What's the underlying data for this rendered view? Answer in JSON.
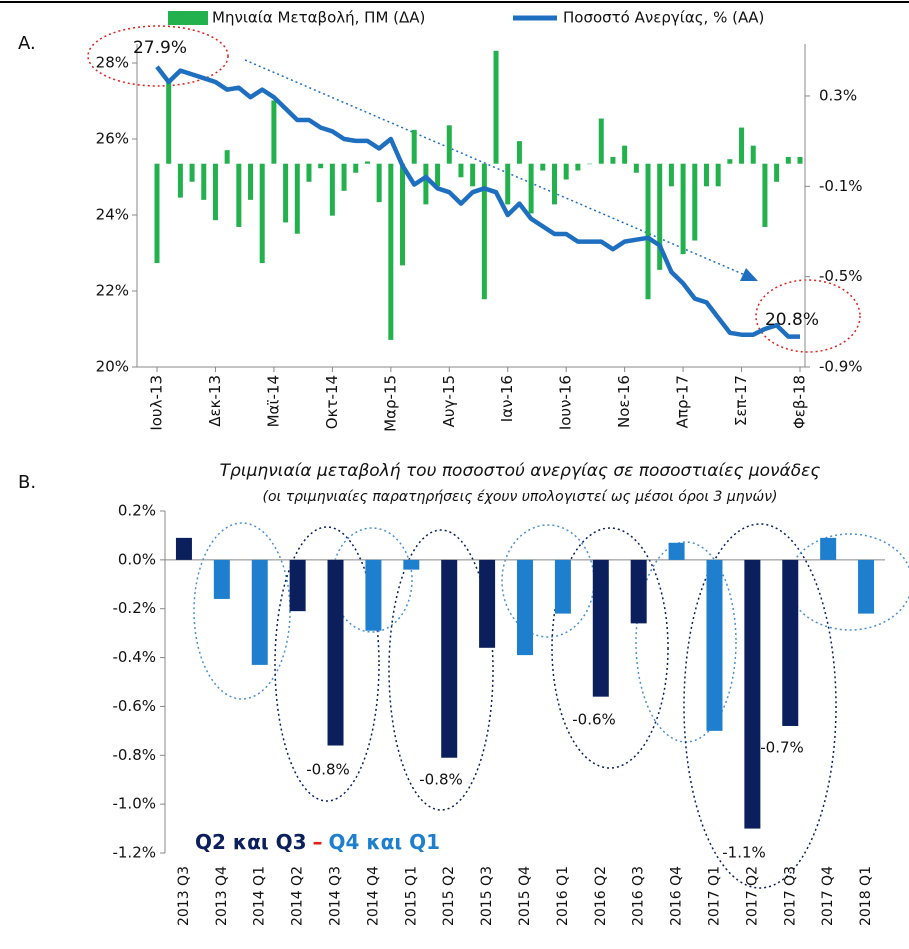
{
  "chart_data": [
    {
      "type": "combo",
      "label": "A.",
      "categories": [
        "Ιουλ-13",
        null,
        null,
        null,
        null,
        "Δεκ-13",
        null,
        null,
        null,
        null,
        "Μαϊ-14",
        null,
        null,
        null,
        null,
        "Οκτ-14",
        null,
        null,
        null,
        null,
        "Μαρ-15",
        null,
        null,
        null,
        null,
        "Αυγ-15",
        null,
        null,
        null,
        null,
        "Ιαν-16",
        null,
        null,
        null,
        null,
        "Ιουν-16",
        null,
        null,
        null,
        null,
        "Νοε-16",
        null,
        null,
        null,
        null,
        "Απρ-17",
        null,
        null,
        null,
        null,
        "Σεπ-17",
        null,
        null,
        null,
        null,
        "Φεβ-18"
      ],
      "series": [
        {
          "name": "Μηνιαία Μεταβολή, ΠΜ (ΔΑ)",
          "color": "#22b14c",
          "axis": "y2",
          "values": [
            -0.44,
            0.36,
            -0.15,
            -0.08,
            -0.16,
            -0.25,
            0.06,
            -0.28,
            -0.16,
            -0.44,
            0.28,
            -0.26,
            -0.31,
            -0.08,
            -0.02,
            -0.23,
            -0.12,
            -0.04,
            0.01,
            -0.17,
            -0.78,
            -0.45,
            0.15,
            -0.18,
            -0.1,
            0.17,
            -0.06,
            -0.1,
            -0.6,
            0.5,
            -0.18,
            0.1,
            -0.22,
            -0.03,
            -0.18,
            -0.07,
            -0.03,
            0.0,
            0.2,
            0.03,
            0.08,
            -0.04,
            -0.6,
            -0.47,
            -0.1,
            -0.4,
            -0.34,
            -0.1,
            -0.1,
            0.02,
            0.16,
            0.08,
            -0.28,
            -0.08,
            0.03,
            0.03
          ]
        },
        {
          "name": "Ποσοστό Ανεργίας, % (ΑΑ)",
          "color": "#1f6fc0",
          "values": [
            27.9,
            27.5,
            27.8,
            27.7,
            27.6,
            27.5,
            27.3,
            27.35,
            27.1,
            27.3,
            27.1,
            26.8,
            26.5,
            26.5,
            26.3,
            26.2,
            26.0,
            25.95,
            25.95,
            25.75,
            26.0,
            25.3,
            24.8,
            25.0,
            24.7,
            24.6,
            24.3,
            24.6,
            24.7,
            24.6,
            24.0,
            24.3,
            23.9,
            23.7,
            23.5,
            23.5,
            23.3,
            23.3,
            23.3,
            23.1,
            23.3,
            23.35,
            23.4,
            23.2,
            22.5,
            22.2,
            21.8,
            21.7,
            21.3,
            20.9,
            20.85,
            20.85,
            21.0,
            21.1,
            20.8,
            20.8
          ]
        }
      ],
      "ylim": [
        20,
        28.5
      ],
      "yticks": [
        {
          "value": 20,
          "label": "20%"
        },
        {
          "value": 22,
          "label": "22%"
        },
        {
          "value": 24,
          "label": "24%"
        },
        {
          "value": 26,
          "label": "26%"
        },
        {
          "value": 28,
          "label": "28%"
        }
      ],
      "y2lim": [
        -0.9,
        0.53
      ],
      "y2ticks": [
        {
          "value": 0.3,
          "label": "0.3%"
        },
        {
          "value": -0.1,
          "label": "-0.1%"
        },
        {
          "value": -0.5,
          "label": "-0.5%"
        },
        {
          "value": -0.9,
          "label": "-0.9%"
        }
      ],
      "annotations": [
        "27.9%",
        "20.8%"
      ]
    },
    {
      "type": "bar",
      "label": "B.",
      "title": "Τριμηνιαία μεταβολή του ποσοστού ανεργίας σε ποσοστιαίες μονάδες",
      "subtitle": "(οι τριμηνιαίες παρατηρήσεις έχουν υπολογιστεί ως μέσοι όροι 3 μηνών)",
      "categories": [
        "2013 Q3",
        "2013 Q4",
        "2014 Q1",
        "2014 Q2",
        "2014 Q3",
        "2014 Q4",
        "2015 Q1",
        "2015 Q2",
        "2015 Q3",
        "2015 Q4",
        "2016 Q1",
        "2016 Q2",
        "2016 Q3",
        "2016 Q4",
        "2017 Q1",
        "2017 Q2",
        "2017 Q3",
        "2017 Q4",
        "2018 Q1"
      ],
      "values": [
        0.09,
        -0.16,
        -0.43,
        -0.21,
        -0.76,
        -0.29,
        -0.04,
        -0.81,
        -0.36,
        -0.39,
        -0.22,
        -0.56,
        -0.26,
        0.07,
        -0.7,
        -1.1,
        -0.68,
        0.09,
        -0.22
      ],
      "colors": [
        "#0a1f5c",
        "#1f7fcf",
        "#1f7fcf",
        "#0a1f5c",
        "#0a1f5c",
        "#1f7fcf",
        "#1f7fcf",
        "#0a1f5c",
        "#0a1f5c",
        "#1f7fcf",
        "#1f7fcf",
        "#0a1f5c",
        "#0a1f5c",
        "#1f7fcf",
        "#1f7fcf",
        "#0a1f5c",
        "#0a1f5c",
        "#1f7fcf",
        "#1f7fcf"
      ],
      "ylim": [
        -1.2,
        0.2
      ],
      "yticks": [
        {
          "value": 0.2,
          "label": "0.2%"
        },
        {
          "value": 0,
          "label": "0.0%"
        },
        {
          "value": -0.2,
          "label": "-0.2%"
        },
        {
          "value": -0.4,
          "label": "-0.4%"
        },
        {
          "value": -0.6,
          "label": "-0.6%"
        },
        {
          "value": -0.8,
          "label": "-0.8%"
        },
        {
          "value": -1.0,
          "label": "-1.0%"
        },
        {
          "value": -1.2,
          "label": "-1.2%"
        }
      ],
      "annotations": [
        "-0.8%",
        "-0.8%",
        "-0.6%",
        "-1.1%",
        "-0.7%"
      ],
      "legend": [
        {
          "text": "Q2 και Q3",
          "color": "#0a1f5c"
        },
        {
          "text": "–",
          "color": "#e0201b"
        },
        {
          "text": "Q4 και Q1",
          "color": "#1f7fcf"
        }
      ]
    }
  ]
}
